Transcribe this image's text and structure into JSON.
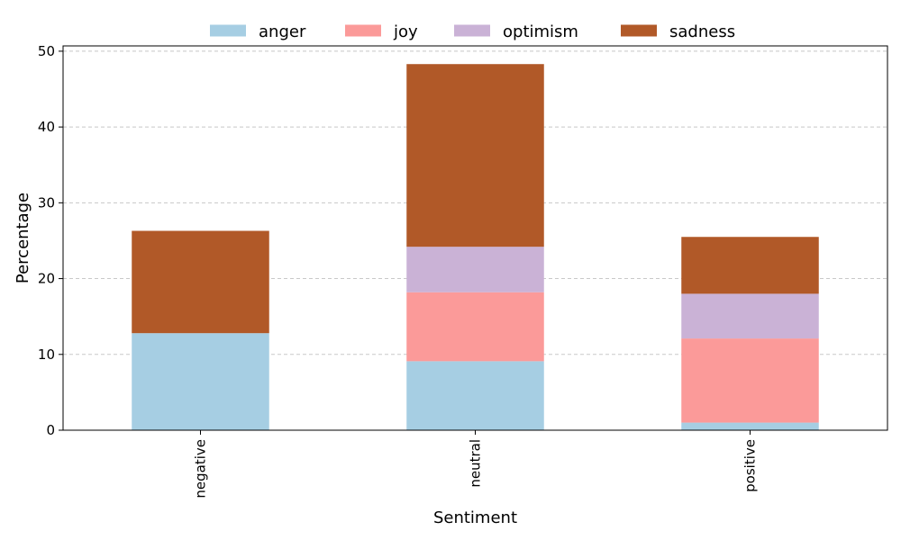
{
  "chart_data": {
    "type": "bar",
    "stacked": true,
    "categories": [
      "negative",
      "neutral",
      "positive"
    ],
    "series": [
      {
        "name": "anger",
        "color": "#a6cee3",
        "values": [
          12.8,
          9.1,
          1.0
        ]
      },
      {
        "name": "joy",
        "color": "#fb9a99",
        "values": [
          0,
          9.1,
          11.1
        ]
      },
      {
        "name": "optimism",
        "color": "#cab2d6",
        "values": [
          0,
          6.0,
          5.9
        ]
      },
      {
        "name": "sadness",
        "color": "#b15928",
        "values": [
          13.5,
          24.1,
          7.5
        ]
      }
    ],
    "xlabel": "Sentiment",
    "ylabel": "Percentage",
    "ylim": [
      0,
      50.7
    ],
    "yticks": [
      0,
      10,
      20,
      30,
      40,
      50
    ],
    "grid": "y-dashed",
    "legend_position": "top-center"
  }
}
